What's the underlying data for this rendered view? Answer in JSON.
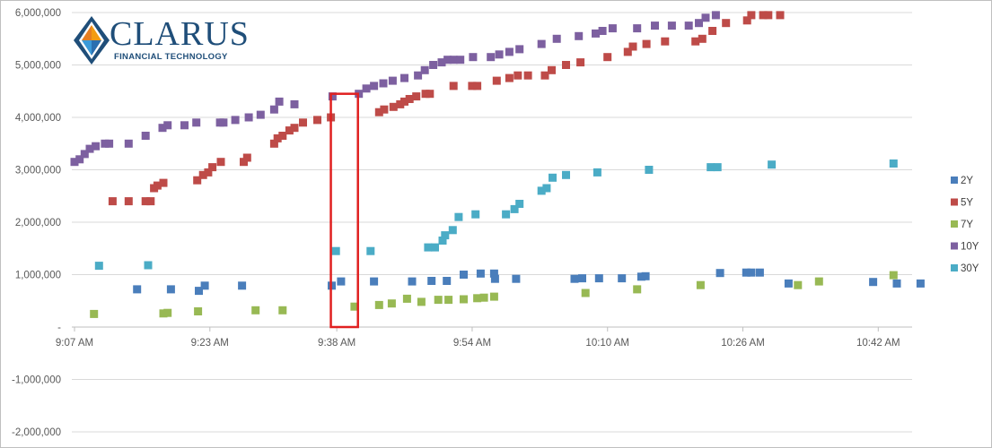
{
  "chart_data": {
    "type": "scatter",
    "title": "",
    "xlabel": "",
    "ylabel": "",
    "x_unit": "minutes since 9:07 AM",
    "xlim": [
      0,
      99
    ],
    "ylim": [
      -2000000,
      6000000
    ],
    "y_ticks": [
      6000000,
      5000000,
      4000000,
      3000000,
      2000000,
      1000000,
      0,
      -1000000,
      -2000000
    ],
    "y_tick_labels": [
      "6,000,000",
      "5,000,000",
      "4,000,000",
      "3,000,000",
      "2,000,000",
      "1,000,000",
      "-",
      "-1,000,000",
      "-2,000,000"
    ],
    "x_ticks": [
      0,
      16,
      31,
      47,
      63,
      79,
      95
    ],
    "x_tick_labels": [
      "9:07 AM",
      "9:23 AM",
      "9:38 AM",
      "9:54 AM",
      "10:10 AM",
      "10:26 AM",
      "10:42 AM"
    ],
    "grid": "horizontal",
    "legend_position": "right",
    "series": [
      {
        "name": "2Y",
        "color": "#4a7ebb",
        "points": [
          [
            7.4,
            720000
          ],
          [
            11.4,
            720000
          ],
          [
            14.7,
            690000
          ],
          [
            15.4,
            790000
          ],
          [
            19.8,
            790000
          ],
          [
            30.4,
            790000
          ],
          [
            31.5,
            870000
          ],
          [
            35.4,
            870000
          ],
          [
            39.9,
            870000
          ],
          [
            42.2,
            880000
          ],
          [
            44.0,
            880000
          ],
          [
            46.0,
            1000000
          ],
          [
            48.0,
            1020000
          ],
          [
            49.6,
            1020000
          ],
          [
            49.7,
            920000
          ],
          [
            52.2,
            920000
          ],
          [
            59.1,
            920000
          ],
          [
            60.0,
            930000
          ],
          [
            62.0,
            930000
          ],
          [
            64.7,
            930000
          ],
          [
            67.0,
            960000
          ],
          [
            67.5,
            970000
          ],
          [
            76.3,
            1030000
          ],
          [
            79.4,
            1040000
          ],
          [
            80.0,
            1040000
          ],
          [
            81.0,
            1040000
          ],
          [
            84.4,
            830000
          ],
          [
            94.4,
            860000
          ],
          [
            97.2,
            830000
          ],
          [
            100.0,
            830000
          ]
        ]
      },
      {
        "name": "5Y",
        "color": "#be4b48",
        "points": [
          [
            4.5,
            2400000
          ],
          [
            6.4,
            2400000
          ],
          [
            8.4,
            2400000
          ],
          [
            9.0,
            2400000
          ],
          [
            9.4,
            2650000
          ],
          [
            9.8,
            2700000
          ],
          [
            10.5,
            2750000
          ],
          [
            14.5,
            2800000
          ],
          [
            15.2,
            2900000
          ],
          [
            15.8,
            2950000
          ],
          [
            16.3,
            3050000
          ],
          [
            17.3,
            3150000
          ],
          [
            20.0,
            3150000
          ],
          [
            20.4,
            3230000
          ],
          [
            23.6,
            3500000
          ],
          [
            24.0,
            3600000
          ],
          [
            24.6,
            3650000
          ],
          [
            25.4,
            3750000
          ],
          [
            26.0,
            3800000
          ],
          [
            27.0,
            3900000
          ],
          [
            28.7,
            3950000
          ],
          [
            30.3,
            4000000
          ],
          [
            36.0,
            4100000
          ],
          [
            36.6,
            4150000
          ],
          [
            37.7,
            4200000
          ],
          [
            38.5,
            4250000
          ],
          [
            39.0,
            4300000
          ],
          [
            39.6,
            4350000
          ],
          [
            40.4,
            4400000
          ],
          [
            41.5,
            4450000
          ],
          [
            42.0,
            4450000
          ],
          [
            44.8,
            4600000
          ],
          [
            47.0,
            4600000
          ],
          [
            47.6,
            4600000
          ],
          [
            49.9,
            4700000
          ],
          [
            51.4,
            4750000
          ],
          [
            52.4,
            4800000
          ],
          [
            53.6,
            4800000
          ],
          [
            55.6,
            4800000
          ],
          [
            56.4,
            4900000
          ],
          [
            58.1,
            5000000
          ],
          [
            59.8,
            5050000
          ],
          [
            63.0,
            5150000
          ],
          [
            65.4,
            5250000
          ],
          [
            66.0,
            5350000
          ],
          [
            67.6,
            5400000
          ],
          [
            69.8,
            5450000
          ],
          [
            73.4,
            5450000
          ],
          [
            74.2,
            5500000
          ],
          [
            75.4,
            5650000
          ],
          [
            77.0,
            5800000
          ],
          [
            79.5,
            5850000
          ],
          [
            80.0,
            5950000
          ],
          [
            81.4,
            5950000
          ],
          [
            82.0,
            5950000
          ],
          [
            83.4,
            5950000
          ]
        ]
      },
      {
        "name": "7Y",
        "color": "#98b954",
        "points": [
          [
            2.3,
            250000
          ],
          [
            10.5,
            260000
          ],
          [
            11.0,
            270000
          ],
          [
            14.6,
            300000
          ],
          [
            21.4,
            320000
          ],
          [
            24.6,
            320000
          ],
          [
            33.1,
            390000
          ],
          [
            36.0,
            420000
          ],
          [
            37.5,
            450000
          ],
          [
            39.3,
            540000
          ],
          [
            41.0,
            480000
          ],
          [
            43.0,
            520000
          ],
          [
            44.2,
            520000
          ],
          [
            46.0,
            530000
          ],
          [
            47.6,
            550000
          ],
          [
            48.4,
            560000
          ],
          [
            49.6,
            580000
          ],
          [
            60.4,
            650000
          ],
          [
            66.5,
            720000
          ],
          [
            74.0,
            800000
          ],
          [
            85.5,
            800000
          ],
          [
            88.0,
            870000
          ],
          [
            96.8,
            990000
          ]
        ]
      },
      {
        "name": "10Y",
        "color": "#7d60a0",
        "points": [
          [
            0.0,
            3150000
          ],
          [
            0.6,
            3200000
          ],
          [
            1.2,
            3300000
          ],
          [
            1.8,
            3400000
          ],
          [
            2.5,
            3450000
          ],
          [
            3.6,
            3500000
          ],
          [
            4.1,
            3500000
          ],
          [
            6.4,
            3500000
          ],
          [
            8.4,
            3650000
          ],
          [
            10.4,
            3800000
          ],
          [
            11.0,
            3850000
          ],
          [
            13.0,
            3850000
          ],
          [
            14.4,
            3900000
          ],
          [
            17.2,
            3900000
          ],
          [
            17.6,
            3900000
          ],
          [
            19.0,
            3950000
          ],
          [
            20.6,
            4000000
          ],
          [
            22.0,
            4050000
          ],
          [
            23.6,
            4150000
          ],
          [
            24.2,
            4300000
          ],
          [
            26.0,
            4250000
          ],
          [
            30.5,
            4400000
          ],
          [
            33.6,
            4450000
          ],
          [
            34.5,
            4550000
          ],
          [
            35.4,
            4600000
          ],
          [
            36.5,
            4650000
          ],
          [
            37.6,
            4700000
          ],
          [
            39.0,
            4750000
          ],
          [
            40.6,
            4800000
          ],
          [
            41.4,
            4900000
          ],
          [
            42.4,
            5000000
          ],
          [
            43.4,
            5050000
          ],
          [
            44.1,
            5100000
          ],
          [
            44.8,
            5100000
          ],
          [
            45.6,
            5100000
          ],
          [
            47.1,
            5150000
          ],
          [
            49.2,
            5150000
          ],
          [
            50.2,
            5200000
          ],
          [
            51.4,
            5250000
          ],
          [
            52.6,
            5300000
          ],
          [
            55.2,
            5400000
          ],
          [
            57.0,
            5500000
          ],
          [
            59.6,
            5550000
          ],
          [
            61.6,
            5600000
          ],
          [
            62.4,
            5650000
          ],
          [
            63.6,
            5700000
          ],
          [
            66.5,
            5700000
          ],
          [
            68.6,
            5750000
          ],
          [
            70.6,
            5750000
          ],
          [
            72.6,
            5750000
          ],
          [
            73.8,
            5800000
          ],
          [
            74.6,
            5900000
          ],
          [
            75.8,
            5950000
          ]
        ]
      },
      {
        "name": "30Y",
        "color": "#4bacc6",
        "points": [
          [
            2.9,
            1170000
          ],
          [
            8.7,
            1180000
          ],
          [
            30.9,
            1450000
          ],
          [
            35.0,
            1450000
          ],
          [
            41.8,
            1520000
          ],
          [
            42.6,
            1520000
          ],
          [
            43.5,
            1650000
          ],
          [
            43.8,
            1750000
          ],
          [
            44.7,
            1850000
          ],
          [
            45.4,
            2100000
          ],
          [
            47.4,
            2150000
          ],
          [
            51.0,
            2150000
          ],
          [
            52.0,
            2250000
          ],
          [
            52.6,
            2350000
          ],
          [
            55.2,
            2600000
          ],
          [
            55.8,
            2650000
          ],
          [
            56.5,
            2850000
          ],
          [
            58.1,
            2900000
          ],
          [
            61.8,
            2950000
          ],
          [
            67.9,
            3000000
          ],
          [
            75.2,
            3050000
          ],
          [
            76.0,
            3050000
          ],
          [
            82.4,
            3100000
          ],
          [
            96.8,
            3120000
          ]
        ]
      }
    ],
    "highlight_box": {
      "x_range": [
        30.3,
        33.5
      ],
      "y_range": [
        0,
        4450000
      ],
      "color": "#e02020"
    }
  },
  "logo": {
    "word": "CLARUS",
    "tagline": "FINANCIAL TECHNOLOGY"
  }
}
